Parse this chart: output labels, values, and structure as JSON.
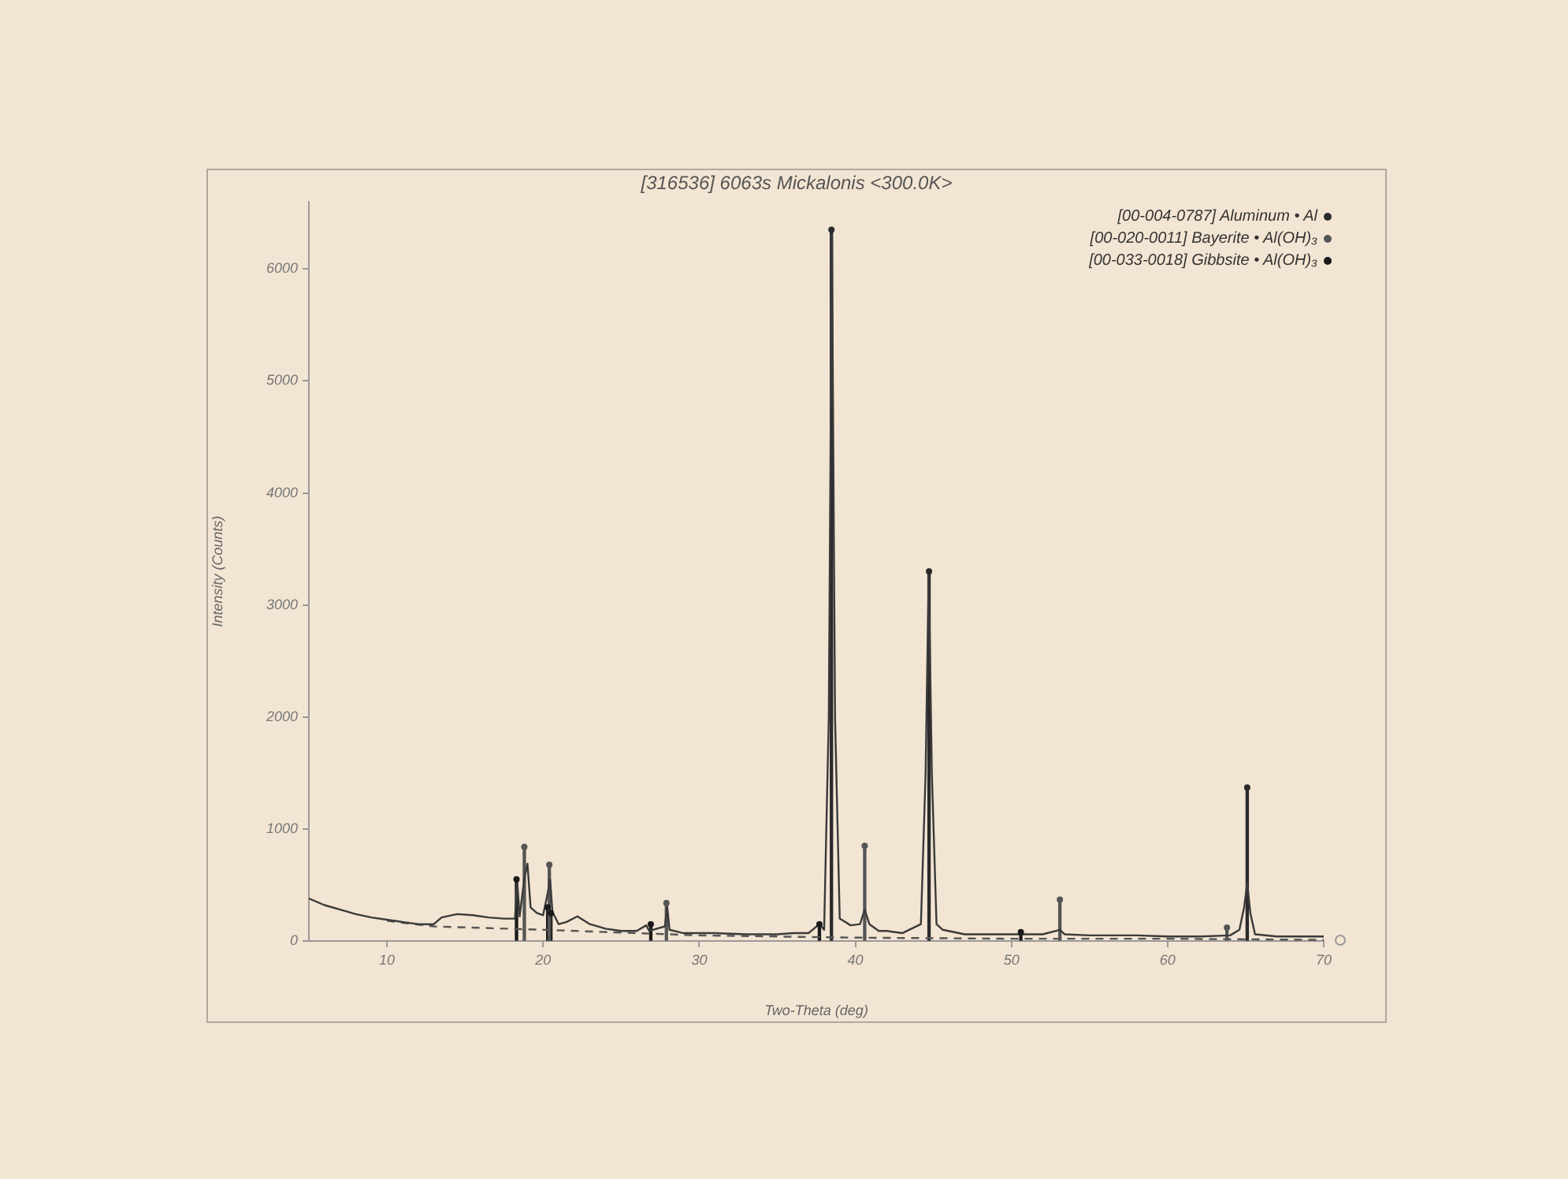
{
  "chart_data": {
    "type": "line",
    "title": "[316536] 6063s Mickalonis <300.0K>",
    "xlabel": "Two-Theta (deg)",
    "ylabel": "Intensity (Counts)",
    "xlim": [
      5,
      70
    ],
    "xticks": [
      10,
      20,
      30,
      40,
      50,
      60,
      70
    ],
    "ylim": [
      0,
      6600
    ],
    "yticks": [
      0,
      1000,
      2000,
      3000,
      4000,
      5000,
      6000
    ],
    "grid": false,
    "legend": "top right",
    "series": [
      {
        "color": "#3a3a3a",
        "marker": "none",
        "line_style": "solid",
        "x": [
          5,
          6,
          7,
          8,
          9,
          10,
          11,
          12,
          13,
          13.5,
          14.5,
          15.5,
          16.5,
          17.5,
          18.2,
          18.35,
          18.5,
          18.8,
          19,
          19.2,
          19.6,
          20,
          20.3,
          20.45,
          20.6,
          21,
          21.5,
          22.2,
          23,
          24,
          25,
          26,
          26.6,
          26.8,
          27.8,
          27.95,
          28.1,
          29,
          31,
          33,
          35,
          36,
          37,
          37.7,
          38,
          38.3,
          38.5,
          38.7,
          39,
          39.7,
          40.3,
          40.6,
          40.9,
          41.5,
          42,
          43,
          44.2,
          44.5,
          44.7,
          44.9,
          45.2,
          45.6,
          47,
          50,
          52,
          53.1,
          53.4,
          55,
          58,
          60,
          62,
          64,
          64.6,
          64.9,
          65.1,
          65.3,
          65.6,
          67,
          70
        ],
        "values": [
          380,
          320,
          280,
          240,
          210,
          190,
          170,
          150,
          150,
          210,
          240,
          230,
          210,
          200,
          200,
          520,
          220,
          560,
          690,
          300,
          250,
          230,
          430,
          550,
          260,
          150,
          170,
          220,
          150,
          110,
          90,
          90,
          140,
          90,
          130,
          310,
          100,
          70,
          70,
          60,
          60,
          70,
          70,
          150,
          100,
          2000,
          6300,
          2000,
          200,
          140,
          150,
          280,
          150,
          90,
          90,
          70,
          150,
          1500,
          3300,
          1500,
          150,
          100,
          60,
          60,
          60,
          100,
          60,
          50,
          50,
          40,
          40,
          50,
          100,
          300,
          520,
          250,
          60,
          40,
          40
        ]
      },
      {
        "color": "#555555",
        "marker": "none",
        "line_style": "dashed",
        "x": [
          10,
          13,
          20,
          30,
          40,
          50,
          60,
          70
        ],
        "values": [
          180,
          130,
          100,
          50,
          30,
          20,
          20,
          10
        ]
      },
      {
        "type": "lollipop",
        "name": "[00-004-0787] Aluminum • Al",
        "color": "#2a2a2a",
        "marker": "circle",
        "x": [
          38.47,
          44.72,
          65.1
        ],
        "values": [
          6350,
          3300,
          1370
        ]
      },
      {
        "type": "lollipop",
        "name": "[00-020-0011] Bayerite • Al(OH)₃",
        "color": "#555555",
        "marker": "circle",
        "x": [
          18.8,
          20.4,
          27.9,
          40.6,
          53.1,
          63.8
        ],
        "values": [
          840,
          680,
          340,
          850,
          370,
          120
        ]
      },
      {
        "type": "lollipop",
        "name": "[00-033-0018] Gibbsite • Al(OH)₃",
        "color": "#1a1a1a",
        "marker": "circle",
        "x": [
          18.3,
          20.3,
          20.5,
          26.9,
          37.7,
          50.6
        ],
        "values": [
          550,
          300,
          250,
          150,
          150,
          80
        ]
      }
    ]
  }
}
